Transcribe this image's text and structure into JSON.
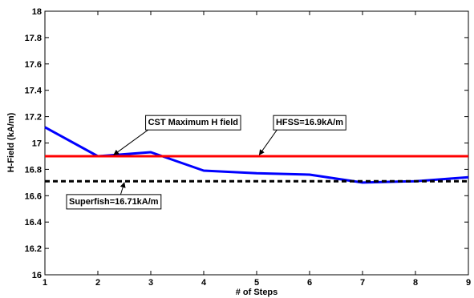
{
  "chart_data": {
    "type": "line",
    "xlabel": "# of Steps",
    "ylabel": "H-Field (kA/m)",
    "xlim": [
      1,
      9
    ],
    "ylim": [
      16,
      18
    ],
    "xticks": [
      1,
      2,
      3,
      4,
      5,
      6,
      7,
      8,
      9
    ],
    "yticks": [
      16,
      16.2,
      16.4,
      16.6,
      16.8,
      17,
      17.2,
      17.4,
      17.6,
      17.8,
      18
    ],
    "grid": false,
    "series": [
      {
        "style": "solid",
        "color": "#0000ff",
        "x": [
          1,
          2,
          3,
          4,
          5,
          6,
          7,
          8,
          9
        ],
        "values": [
          17.12,
          16.9,
          16.93,
          16.79,
          16.77,
          16.76,
          16.7,
          16.71,
          16.74
        ]
      },
      {
        "style": "solid",
        "color": "#ff0000",
        "x": [
          1,
          9
        ],
        "values": [
          16.9,
          16.9
        ]
      },
      {
        "style": "dashed",
        "color": "#000000",
        "x": [
          1,
          9
        ],
        "values": [
          16.71,
          16.71
        ]
      }
    ],
    "annotations": [
      {
        "text": "CST Maximum H field",
        "x": 3.8,
        "y": 17.16,
        "arrow_to": [
          2.3,
          16.91
        ]
      },
      {
        "text": "HFSS=16.9kA/m",
        "x": 6.0,
        "y": 17.16,
        "arrow_to": [
          5.05,
          16.91
        ]
      },
      {
        "text": "Superfish=16.71kA/m",
        "x": 2.3,
        "y": 16.56,
        "arrow_to": [
          2.5,
          16.7
        ]
      }
    ]
  }
}
